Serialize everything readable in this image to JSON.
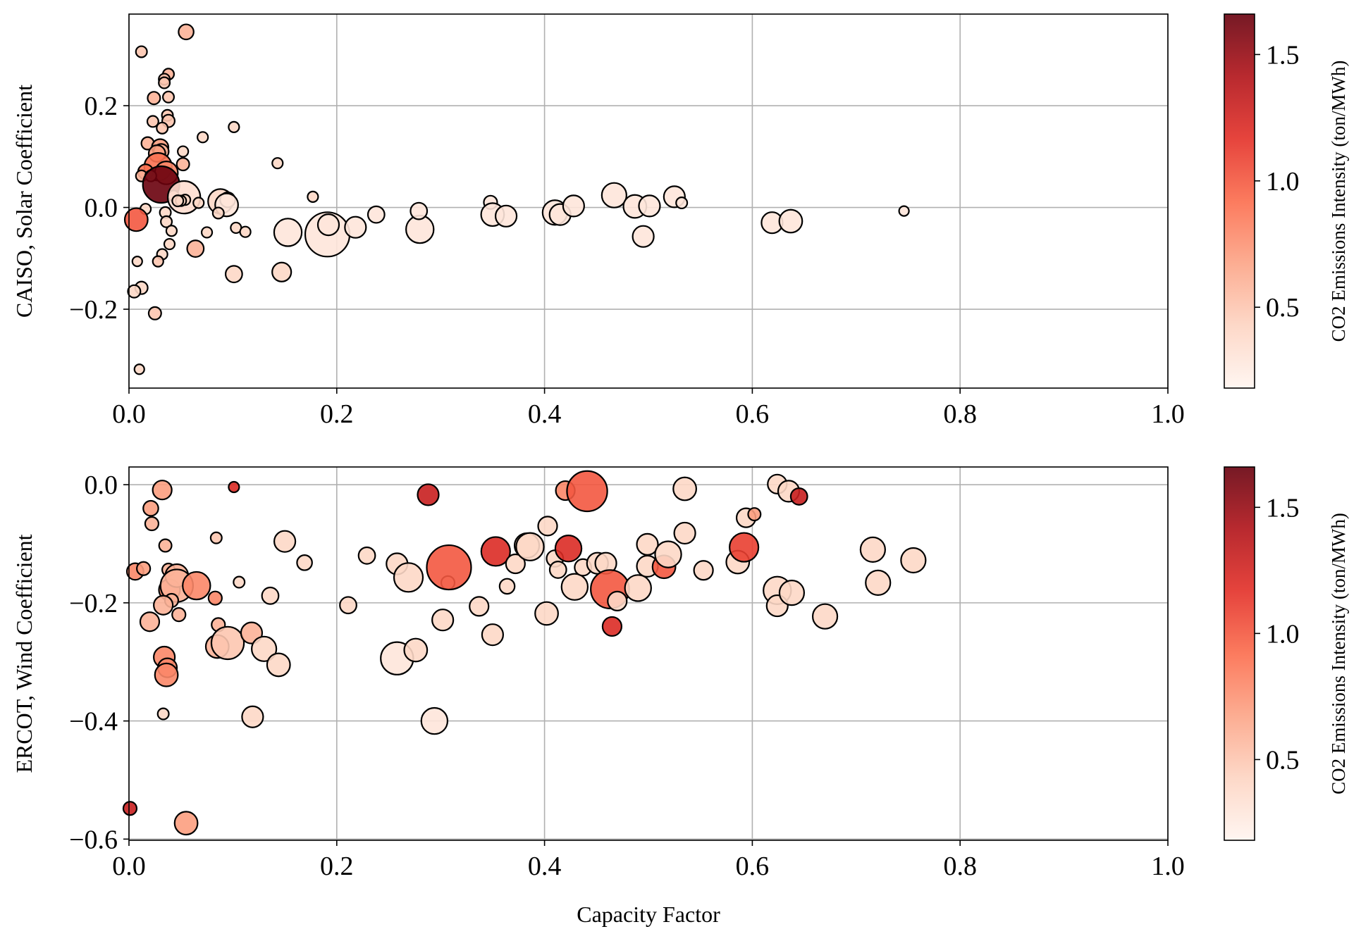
{
  "chart_data": [
    {
      "type": "scatter",
      "ylabel": "CAISO, Solar Coefficient",
      "xlabel": "",
      "xlim": [
        0,
        1.0
      ],
      "ylim": [
        -0.355,
        0.38
      ],
      "xticks": [
        "0.0",
        "0.2",
        "0.4",
        "0.6",
        "0.8",
        "1.0"
      ],
      "yticks": [
        "−0.2",
        "0.0",
        "0.2"
      ],
      "ytick_values": [
        -0.2,
        0.0,
        0.2
      ],
      "grid": true,
      "colorbar": {
        "label": "CO2 Emissions Intensity (ton/MWh)",
        "ticks": [
          "0.5",
          "1.0",
          "1.5"
        ],
        "tick_values": [
          0.5,
          1.0,
          1.5
        ],
        "range": [
          0.18,
          1.66
        ],
        "colormap": [
          "#fff5f0",
          "#fdd4c2",
          "#fca486",
          "#fb6c4c",
          "#e32f27",
          "#b11218",
          "#67000d"
        ]
      },
      "point_fields": [
        "capacity_factor",
        "coefficient",
        "co2_intensity",
        "size"
      ],
      "points": [
        [
          0.055,
          0.345,
          0.6,
          0.015
        ],
        [
          0.012,
          0.306,
          0.5,
          0.005
        ],
        [
          0.038,
          0.262,
          0.6,
          0.005
        ],
        [
          0.034,
          0.252,
          0.5,
          0.005
        ],
        [
          0.034,
          0.245,
          0.5,
          0.005
        ],
        [
          0.024,
          0.215,
          0.6,
          0.008
        ],
        [
          0.038,
          0.217,
          0.5,
          0.005
        ],
        [
          0.037,
          0.181,
          0.5,
          0.005
        ],
        [
          0.038,
          0.17,
          0.5,
          0.008
        ],
        [
          0.023,
          0.169,
          0.5,
          0.005
        ],
        [
          0.032,
          0.156,
          0.5,
          0.005
        ],
        [
          0.101,
          0.158,
          0.4,
          0.004
        ],
        [
          0.071,
          0.138,
          0.4,
          0.004
        ],
        [
          0.018,
          0.126,
          0.6,
          0.008
        ],
        [
          0.03,
          0.118,
          0.7,
          0.02
        ],
        [
          0.031,
          0.11,
          0.6,
          0.015
        ],
        [
          0.052,
          0.11,
          0.4,
          0.004
        ],
        [
          0.027,
          0.106,
          0.7,
          0.02
        ],
        [
          0.143,
          0.087,
          0.4,
          0.004
        ],
        [
          0.052,
          0.085,
          0.6,
          0.008
        ],
        [
          0.028,
          0.08,
          0.9,
          0.08
        ],
        [
          0.016,
          0.07,
          0.9,
          0.015
        ],
        [
          0.036,
          0.068,
          0.8,
          0.05
        ],
        [
          0.012,
          0.062,
          0.6,
          0.005
        ],
        [
          0.021,
          0.062,
          0.6,
          0.005
        ],
        [
          0.031,
          0.045,
          1.65,
          0.16
        ],
        [
          0.043,
          0.023,
          0.4,
          0.004
        ],
        [
          0.053,
          0.02,
          0.35,
          0.12
        ],
        [
          0.177,
          0.021,
          0.4,
          0.004
        ],
        [
          0.088,
          0.012,
          0.4,
          0.06
        ],
        [
          0.095,
          0.015,
          0.4,
          0.015
        ],
        [
          0.054,
          0.015,
          0.4,
          0.004
        ],
        [
          0.094,
          0.005,
          0.3,
          0.05
        ],
        [
          0.067,
          0.009,
          0.4,
          0.004
        ],
        [
          0.05,
          0.013,
          0.4,
          0.004
        ],
        [
          0.047,
          0.013,
          0.4,
          0.005
        ],
        [
          0.086,
          -0.011,
          0.4,
          0.005
        ],
        [
          0.035,
          -0.01,
          0.4,
          0.005
        ],
        [
          0.016,
          -0.003,
          0.4,
          0.004
        ],
        [
          0.007,
          -0.024,
          1.0,
          0.05
        ],
        [
          0.036,
          -0.028,
          0.4,
          0.005
        ],
        [
          0.041,
          -0.046,
          0.4,
          0.004
        ],
        [
          0.075,
          -0.049,
          0.4,
          0.004
        ],
        [
          0.103,
          -0.04,
          0.4,
          0.004
        ],
        [
          0.112,
          -0.048,
          0.4,
          0.004
        ],
        [
          0.039,
          -0.072,
          0.4,
          0.004
        ],
        [
          0.064,
          -0.081,
          0.6,
          0.02
        ],
        [
          0.032,
          -0.092,
          0.4,
          0.004
        ],
        [
          0.028,
          -0.106,
          0.5,
          0.004
        ],
        [
          0.008,
          -0.106,
          0.4,
          0.003
        ],
        [
          0.101,
          -0.131,
          0.4,
          0.02
        ],
        [
          0.147,
          -0.127,
          0.4,
          0.03
        ],
        [
          0.012,
          -0.158,
          0.4,
          0.008
        ],
        [
          0.005,
          -0.165,
          0.4,
          0.008
        ],
        [
          0.025,
          -0.208,
          0.5,
          0.008
        ],
        [
          0.01,
          -0.318,
          0.4,
          0.003
        ],
        [
          0.153,
          -0.049,
          0.3,
          0.08
        ],
        [
          0.191,
          -0.053,
          0.3,
          0.25
        ],
        [
          0.192,
          -0.034,
          0.3,
          0.04
        ],
        [
          0.218,
          -0.039,
          0.3,
          0.04
        ],
        [
          0.238,
          -0.014,
          0.3,
          0.02
        ],
        [
          0.28,
          -0.043,
          0.3,
          0.08
        ],
        [
          0.279,
          -0.007,
          0.3,
          0.02
        ],
        [
          0.348,
          0.01,
          0.3,
          0.01
        ],
        [
          0.35,
          -0.014,
          0.3,
          0.05
        ],
        [
          0.363,
          -0.017,
          0.3,
          0.04
        ],
        [
          0.41,
          -0.01,
          0.3,
          0.06
        ],
        [
          0.415,
          -0.014,
          0.3,
          0.04
        ],
        [
          0.428,
          0.003,
          0.3,
          0.04
        ],
        [
          0.467,
          0.024,
          0.3,
          0.06
        ],
        [
          0.487,
          0.002,
          0.3,
          0.05
        ],
        [
          0.495,
          -0.057,
          0.3,
          0.04
        ],
        [
          0.501,
          0.003,
          0.3,
          0.04
        ],
        [
          0.525,
          0.021,
          0.3,
          0.04
        ],
        [
          0.532,
          0.009,
          0.3,
          0.005
        ],
        [
          0.619,
          -0.03,
          0.3,
          0.04
        ],
        [
          0.637,
          -0.027,
          0.3,
          0.05
        ],
        [
          0.746,
          -0.007,
          0.3,
          0.003
        ]
      ]
    },
    {
      "type": "scatter",
      "ylabel": "ERCOT, Wind Coefficient",
      "xlabel": "Capacity Factor",
      "xlim": [
        0,
        1.0
      ],
      "ylim": [
        -0.602,
        0.03
      ],
      "xticks": [
        "0.0",
        "0.2",
        "0.4",
        "0.6",
        "0.8",
        "1.0"
      ],
      "yticks": [
        "−0.6",
        "−0.4",
        "−0.2",
        "0.0"
      ],
      "ytick_values": [
        -0.6,
        -0.4,
        -0.2,
        0.0
      ],
      "grid": true,
      "colorbar": {
        "label": "CO2 Emissions Intensity (ton/MWh)",
        "ticks": [
          "0.5",
          "1.0",
          "1.5"
        ],
        "tick_values": [
          0.5,
          1.0,
          1.5
        ],
        "range": [
          0.18,
          1.66
        ],
        "colormap": [
          "#fff5f0",
          "#fdd4c2",
          "#fca486",
          "#fb6c4c",
          "#e32f27",
          "#b11218",
          "#67000d"
        ]
      },
      "point_fields": [
        "capacity_factor",
        "coefficient",
        "co2_intensity",
        "size"
      ],
      "points": [
        [
          0.032,
          -0.009,
          0.7,
          0.03
        ],
        [
          0.101,
          -0.004,
          1.2,
          0.004
        ],
        [
          0.021,
          -0.04,
          0.7,
          0.015
        ],
        [
          0.022,
          -0.066,
          0.6,
          0.01
        ],
        [
          0.035,
          -0.103,
          0.6,
          0.008
        ],
        [
          0.006,
          -0.147,
          0.8,
          0.02
        ],
        [
          0.014,
          -0.142,
          0.7,
          0.01
        ],
        [
          0.038,
          -0.144,
          0.6,
          0.008
        ],
        [
          0.039,
          -0.178,
          0.8,
          0.04
        ],
        [
          0.02,
          -0.232,
          0.6,
          0.03
        ],
        [
          0.046,
          -0.154,
          0.6,
          0.05
        ],
        [
          0.046,
          -0.171,
          0.6,
          0.12
        ],
        [
          0.065,
          -0.171,
          0.8,
          0.08
        ],
        [
          0.041,
          -0.196,
          0.6,
          0.01
        ],
        [
          0.048,
          -0.22,
          0.6,
          0.01
        ],
        [
          0.033,
          -0.204,
          0.6,
          0.03
        ],
        [
          0.084,
          -0.09,
          0.5,
          0.005
        ],
        [
          0.083,
          -0.192,
          0.8,
          0.01
        ],
        [
          0.106,
          -0.165,
          0.4,
          0.005
        ],
        [
          0.086,
          -0.237,
          0.6,
          0.01
        ],
        [
          0.085,
          -0.274,
          0.6,
          0.05
        ],
        [
          0.095,
          -0.268,
          0.5,
          0.12
        ],
        [
          0.118,
          -0.251,
          0.6,
          0.04
        ],
        [
          0.13,
          -0.278,
          0.4,
          0.06
        ],
        [
          0.136,
          -0.188,
          0.4,
          0.02
        ],
        [
          0.144,
          -0.305,
          0.4,
          0.05
        ],
        [
          0.034,
          -0.292,
          0.8,
          0.04
        ],
        [
          0.037,
          -0.31,
          0.8,
          0.03
        ],
        [
          0.036,
          -0.322,
          0.8,
          0.05
        ],
        [
          0.033,
          -0.388,
          0.4,
          0.005
        ],
        [
          0.119,
          -0.393,
          0.4,
          0.04
        ],
        [
          0.15,
          -0.096,
          0.4,
          0.04
        ],
        [
          0.169,
          -0.132,
          0.4,
          0.015
        ],
        [
          0.211,
          -0.204,
          0.4,
          0.02
        ],
        [
          0.229,
          -0.12,
          0.4,
          0.02
        ],
        [
          0.258,
          -0.134,
          0.4,
          0.04
        ],
        [
          0.269,
          -0.157,
          0.4,
          0.09
        ],
        [
          0.258,
          -0.294,
          0.3,
          0.12
        ],
        [
          0.276,
          -0.28,
          0.4,
          0.05
        ],
        [
          0.302,
          -0.229,
          0.4,
          0.04
        ],
        [
          0.294,
          -0.4,
          0.3,
          0.07
        ],
        [
          0.307,
          -0.166,
          0.3,
          0.01
        ],
        [
          0.288,
          -0.017,
          1.3,
          0.04
        ],
        [
          0.308,
          -0.14,
          1.0,
          0.25
        ],
        [
          0.337,
          -0.206,
          0.4,
          0.03
        ],
        [
          0.35,
          -0.254,
          0.4,
          0.04
        ],
        [
          0.353,
          -0.113,
          1.2,
          0.09
        ],
        [
          0.364,
          -0.172,
          0.4,
          0.015
        ],
        [
          0.372,
          -0.134,
          0.4,
          0.03
        ],
        [
          0.383,
          -0.103,
          0.4,
          0.06
        ],
        [
          0.386,
          -0.105,
          0.4,
          0.08
        ],
        [
          0.403,
          -0.07,
          0.4,
          0.03
        ],
        [
          0.402,
          -0.218,
          0.4,
          0.05
        ],
        [
          0.41,
          -0.125,
          0.4,
          0.02
        ],
        [
          0.413,
          -0.144,
          0.4,
          0.02
        ],
        [
          0.42,
          -0.01,
          0.8,
          0.03
        ],
        [
          0.423,
          -0.108,
          1.2,
          0.07
        ],
        [
          0.429,
          -0.173,
          0.4,
          0.07
        ],
        [
          0.437,
          -0.14,
          0.4,
          0.02
        ],
        [
          0.441,
          -0.011,
          1.0,
          0.2
        ],
        [
          0.451,
          -0.133,
          0.4,
          0.04
        ],
        [
          0.459,
          -0.133,
          0.4,
          0.04
        ],
        [
          0.463,
          -0.177,
          1.0,
          0.18
        ],
        [
          0.465,
          -0.24,
          1.2,
          0.03
        ],
        [
          0.47,
          -0.197,
          0.4,
          0.03
        ],
        [
          0.49,
          -0.175,
          0.4,
          0.07
        ],
        [
          0.499,
          -0.101,
          0.4,
          0.04
        ],
        [
          0.499,
          -0.138,
          0.4,
          0.04
        ],
        [
          0.515,
          -0.139,
          1.0,
          0.05
        ],
        [
          0.519,
          -0.118,
          0.4,
          0.07
        ],
        [
          0.535,
          -0.007,
          0.4,
          0.05
        ],
        [
          0.535,
          -0.082,
          0.4,
          0.04
        ],
        [
          0.553,
          -0.145,
          0.4,
          0.03
        ],
        [
          0.586,
          -0.131,
          0.4,
          0.05
        ],
        [
          0.592,
          -0.106,
          1.1,
          0.09
        ],
        [
          0.594,
          -0.056,
          0.4,
          0.03
        ],
        [
          0.602,
          -0.05,
          0.7,
          0.008
        ],
        [
          0.624,
          0.001,
          0.4,
          0.03
        ],
        [
          0.624,
          -0.179,
          0.4,
          0.08
        ],
        [
          0.624,
          -0.205,
          0.4,
          0.04
        ],
        [
          0.635,
          -0.011,
          0.4,
          0.04
        ],
        [
          0.638,
          -0.183,
          0.4,
          0.06
        ],
        [
          0.645,
          -0.02,
          1.3,
          0.02
        ],
        [
          0.67,
          -0.223,
          0.4,
          0.06
        ],
        [
          0.716,
          -0.11,
          0.4,
          0.06
        ],
        [
          0.721,
          -0.166,
          0.4,
          0.06
        ],
        [
          0.755,
          -0.128,
          0.4,
          0.06
        ],
        [
          0.001,
          -0.548,
          1.3,
          0.01
        ],
        [
          0.055,
          -0.573,
          0.7,
          0.05
        ]
      ]
    }
  ]
}
